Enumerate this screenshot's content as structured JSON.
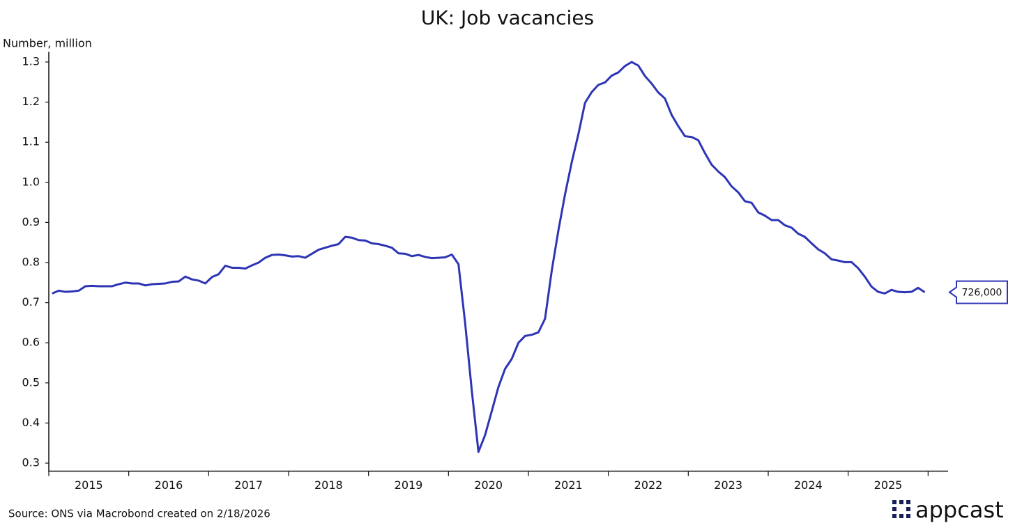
{
  "chart_data": {
    "type": "line",
    "title": "UK: Job vacancies",
    "y_label": "Number, million",
    "source": "Source: ONS via Macrobond created on 2/18/2026",
    "logo": "appcast",
    "x": [
      2015.042,
      2015.125,
      2015.208,
      2015.292,
      2015.375,
      2015.458,
      2015.542,
      2015.625,
      2015.708,
      2015.792,
      2015.875,
      2015.958,
      2016.042,
      2016.125,
      2016.208,
      2016.292,
      2016.375,
      2016.458,
      2016.542,
      2016.625,
      2016.708,
      2016.792,
      2016.875,
      2016.958,
      2017.042,
      2017.125,
      2017.208,
      2017.292,
      2017.375,
      2017.458,
      2017.542,
      2017.625,
      2017.708,
      2017.792,
      2017.875,
      2017.958,
      2018.042,
      2018.125,
      2018.208,
      2018.292,
      2018.375,
      2018.458,
      2018.542,
      2018.625,
      2018.708,
      2018.792,
      2018.875,
      2018.958,
      2019.042,
      2019.125,
      2019.208,
      2019.292,
      2019.375,
      2019.458,
      2019.542,
      2019.625,
      2019.708,
      2019.792,
      2019.875,
      2019.958,
      2020.042,
      2020.125,
      2020.208,
      2020.292,
      2020.375,
      2020.458,
      2020.542,
      2020.625,
      2020.708,
      2020.792,
      2020.875,
      2020.958,
      2021.042,
      2021.125,
      2021.208,
      2021.292,
      2021.375,
      2021.458,
      2021.542,
      2021.625,
      2021.708,
      2021.792,
      2021.875,
      2021.958,
      2022.042,
      2022.125,
      2022.208,
      2022.292,
      2022.375,
      2022.458,
      2022.542,
      2022.625,
      2022.708,
      2022.792,
      2022.875,
      2022.958,
      2023.042,
      2023.125,
      2023.208,
      2023.292,
      2023.375,
      2023.458,
      2023.542,
      2023.625,
      2023.708,
      2023.792,
      2023.875,
      2023.958,
      2024.042,
      2024.125,
      2024.208,
      2024.292,
      2024.375,
      2024.458,
      2024.542,
      2024.625,
      2024.708,
      2024.792,
      2024.875,
      2024.958,
      2025.042,
      2025.125,
      2025.208,
      2025.292,
      2025.375,
      2025.458,
      2025.542,
      2025.625,
      2025.708,
      2025.792,
      2025.875,
      2025.958
    ],
    "series": [
      {
        "color": "#2e35b4",
        "values": [
          0.723,
          0.73,
          0.727,
          0.728,
          0.73,
          0.741,
          0.742,
          0.741,
          0.741,
          0.741,
          0.746,
          0.75,
          0.748,
          0.748,
          0.743,
          0.746,
          0.747,
          0.748,
          0.752,
          0.753,
          0.765,
          0.758,
          0.755,
          0.748,
          0.764,
          0.771,
          0.792,
          0.787,
          0.787,
          0.785,
          0.793,
          0.8,
          0.812,
          0.819,
          0.82,
          0.818,
          0.815,
          0.816,
          0.812,
          0.822,
          0.832,
          0.837,
          0.842,
          0.846,
          0.864,
          0.862,
          0.856,
          0.855,
          0.848,
          0.846,
          0.842,
          0.837,
          0.823,
          0.822,
          0.816,
          0.819,
          0.814,
          0.811,
          0.812,
          0.813,
          0.82,
          0.796,
          0.65,
          0.48,
          0.328,
          0.37,
          0.43,
          0.49,
          0.535,
          0.56,
          0.6,
          0.617,
          0.62,
          0.626,
          0.66,
          0.78,
          0.88,
          0.97,
          1.05,
          1.12,
          1.198,
          1.225,
          1.243,
          1.249,
          1.266,
          1.274,
          1.29,
          1.3,
          1.291,
          1.265,
          1.246,
          1.224,
          1.209,
          1.168,
          1.14,
          1.115,
          1.113,
          1.105,
          1.073,
          1.044,
          1.027,
          1.013,
          0.99,
          0.975,
          0.953,
          0.949,
          0.925,
          0.917,
          0.906,
          0.906,
          0.893,
          0.887,
          0.872,
          0.864,
          0.848,
          0.833,
          0.823,
          0.808,
          0.805,
          0.801,
          0.801,
          0.786,
          0.765,
          0.74,
          0.727,
          0.723,
          0.732,
          0.727,
          0.726,
          0.727,
          0.737,
          0.726
        ],
        "value_labels": [
          null,
          null,
          null,
          null,
          null,
          null,
          null,
          null,
          null,
          null,
          null,
          null,
          null,
          null,
          null,
          null,
          null,
          null,
          null,
          null,
          null,
          null,
          null,
          null,
          null,
          null,
          null,
          null,
          null,
          null,
          null,
          null,
          null,
          null,
          null,
          null,
          null,
          null,
          null,
          null,
          null,
          null,
          null,
          null,
          null,
          null,
          null,
          null,
          null,
          null,
          null,
          null,
          null,
          null,
          null,
          null,
          null,
          null,
          null,
          null,
          null,
          null,
          null,
          null,
          null,
          null,
          null,
          null,
          null,
          null,
          null,
          null,
          null,
          null,
          null,
          null,
          null,
          null,
          null,
          null,
          null,
          null,
          null,
          null,
          null,
          null,
          null,
          null,
          null,
          null,
          null,
          null,
          null,
          null,
          null,
          null,
          null,
          null,
          null,
          null,
          null,
          null,
          null,
          null,
          null,
          null,
          null,
          null,
          null,
          null,
          null,
          null,
          null,
          null,
          null,
          null,
          null,
          null,
          null,
          null,
          null,
          null,
          null,
          null,
          null,
          null,
          null,
          null,
          null,
          null,
          null,
          "726,000"
        ]
      }
    ],
    "xlim": [
      2015,
      2026.25
    ],
    "xticks": [
      2015,
      2016,
      2017,
      2018,
      2019,
      2020,
      2021,
      2022,
      2023,
      2024,
      2025,
      2026
    ],
    "year_labels": [
      {
        "value": 2015.5,
        "label": "2015"
      },
      {
        "value": 2016.5,
        "label": "2016"
      },
      {
        "value": 2017.5,
        "label": "2017"
      },
      {
        "value": 2018.5,
        "label": "2018"
      },
      {
        "value": 2019.5,
        "label": "2019"
      },
      {
        "value": 2020.5,
        "label": "2020"
      },
      {
        "value": 2021.5,
        "label": "2021"
      },
      {
        "value": 2022.5,
        "label": "2022"
      },
      {
        "value": 2023.5,
        "label": "2023"
      },
      {
        "value": 2024.5,
        "label": "2024"
      },
      {
        "value": 2025.5,
        "label": "2025"
      }
    ],
    "ylim": [
      0.28,
      1.32
    ],
    "yticks": [
      0.3,
      0.4,
      0.5,
      0.6,
      0.7,
      0.8,
      0.9,
      {
        "value": 1,
        "label": "1.0"
      },
      1.1,
      1.2,
      1.3
    ]
  }
}
